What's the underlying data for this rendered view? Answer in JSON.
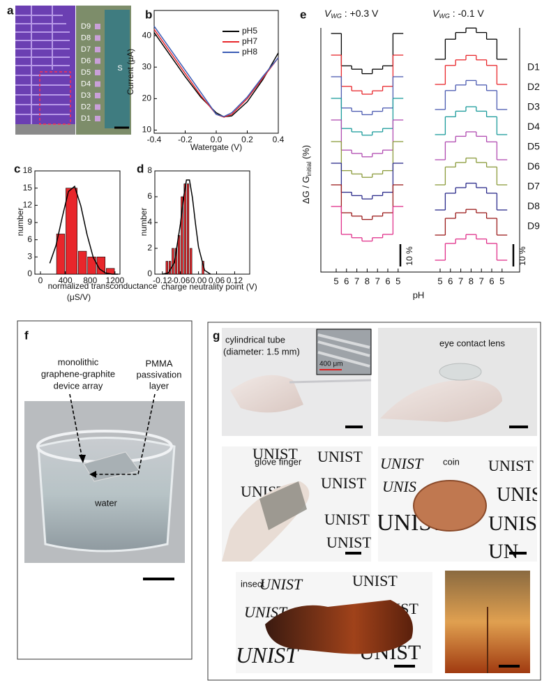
{
  "chart_data": [
    {
      "type": "line",
      "panel": "b",
      "xlabel": "Watergate (V)",
      "ylabel": "Current  (μA)",
      "x": [
        -0.4,
        -0.3,
        -0.2,
        -0.1,
        0,
        0.05,
        0.1,
        0.2,
        0.3,
        0.4
      ],
      "series": [
        {
          "name": "pH5",
          "color": "#000000",
          "values": [
            41,
            34,
            27,
            20.5,
            15.5,
            14.2,
            14.5,
            19,
            26,
            34.5
          ]
        },
        {
          "name": "pH7",
          "color": "#e8262b",
          "values": [
            42,
            35,
            28,
            21,
            15,
            14.1,
            15,
            20,
            26.5,
            33
          ]
        },
        {
          "name": "pH8",
          "color": "#3a5bb5",
          "values": [
            43,
            36,
            29,
            22,
            15,
            14.3,
            15.5,
            20.5,
            27,
            33
          ]
        }
      ],
      "xlim": [
        -0.4,
        0.4
      ],
      "xticks": [
        -0.4,
        -0.2,
        {
          "value": 0,
          "label": "0.0"
        },
        0.2,
        0.4
      ],
      "ylim": [
        9,
        48
      ],
      "yticks": [
        10,
        20,
        30,
        40
      ]
    },
    {
      "type": "histogram",
      "panel": "c",
      "xlabel": [
        "normalized transconductance",
        "(μS/V)"
      ],
      "ylabel": "number",
      "color": "#e8262b",
      "bins": [
        250,
        400,
        600,
        750,
        900,
        1050,
        1200
      ],
      "values": [
        7,
        15,
        4,
        3,
        3,
        1
      ],
      "fit": {
        "x": [
          150,
          250,
          350,
          450,
          550,
          650,
          750,
          850,
          950,
          1050,
          1150,
          1250
        ],
        "values": [
          1.9,
          5.0,
          9.9,
          14.4,
          15.3,
          11.9,
          6.9,
          2.9,
          0.9,
          0.2,
          0,
          0
        ]
      },
      "xlim": [
        -90,
        1280
      ],
      "xticks": [
        0,
        400,
        800,
        1200
      ],
      "ylim": [
        0,
        18
      ],
      "yticks": [
        0,
        3,
        6,
        9,
        12,
        15,
        18
      ]
    },
    {
      "type": "histogram",
      "panel": "d",
      "xlabel": [
        "charge neutrality point (V)"
      ],
      "ylabel": "number",
      "color": "#e8262b",
      "bins": [
        -0.11,
        -0.1,
        -0.09,
        -0.08,
        -0.07,
        -0.06,
        -0.05,
        -0.04,
        -0.03,
        -0.02,
        -0.01,
        0,
        0.01,
        0.02
      ],
      "values": [
        1,
        1,
        2,
        2,
        3,
        6,
        7,
        7,
        2,
        0,
        0,
        0,
        1
      ],
      "fit": {
        "x": [
          -0.12,
          -0.1,
          -0.08,
          -0.06,
          -0.05,
          -0.04,
          -0.03,
          -0.02,
          -0.01,
          0,
          0.02,
          0.04
        ],
        "values": [
          0,
          0.1,
          0.9,
          3.9,
          5.9,
          7.3,
          7.3,
          5.9,
          3.9,
          2.1,
          0.3,
          0
        ]
      },
      "xlim": [
        -0.145,
        0.17
      ],
      "xticks": [
        -0.12,
        -0.06,
        {
          "value": 0,
          "label": "0.00"
        },
        0.06,
        0.12
      ],
      "ylim": [
        0,
        8
      ],
      "yticks": [
        0,
        2,
        4,
        6,
        8
      ]
    },
    {
      "type": "step",
      "panel": "e",
      "title": {
        "symbol": "V",
        "subscript": "WG",
        "text": " : +0.3 V"
      },
      "ylabel": [
        "ΔG / G",
        "initial",
        "  (%)"
      ],
      "xlabel": "pH",
      "scale_bar": {
        "value": 10,
        "label": "10 %"
      },
      "categories": [
        "5",
        "6",
        "7",
        "8",
        "7",
        "6",
        "5"
      ],
      "series": [
        {
          "color": "#000000",
          "values": [
            0,
            -14.5,
            -16,
            -18,
            -16,
            -14.5,
            0
          ]
        },
        {
          "color": "#e8262b",
          "values": [
            0,
            -14,
            -16,
            -17.5,
            -16,
            -14,
            0
          ]
        },
        {
          "color": "#4a5ab0",
          "values": [
            0,
            -14,
            -15.5,
            -17,
            -15.5,
            -14,
            0
          ]
        },
        {
          "color": "#1a9a9a",
          "values": [
            0,
            -13.5,
            -15,
            -16.5,
            -15,
            -13.5,
            0
          ]
        },
        {
          "color": "#b04ab0",
          "values": [
            0,
            -13.5,
            -15,
            -16.5,
            -15,
            -13.5,
            0
          ]
        },
        {
          "color": "#8a9a3a",
          "values": [
            0,
            -13,
            -14.5,
            -16,
            -14.5,
            -13,
            0
          ]
        },
        {
          "color": "#2a2a8a",
          "values": [
            0,
            -13,
            -14.5,
            -16,
            -14.5,
            -13,
            0
          ]
        },
        {
          "color": "#9a1a1a",
          "values": [
            0,
            -12.5,
            -14,
            -15.5,
            -14,
            -12.5,
            0
          ]
        },
        {
          "color": "#e0308a",
          "values": [
            0,
            -12.5,
            -14,
            -15.5,
            -14,
            -12.5,
            0
          ]
        }
      ]
    },
    {
      "type": "step",
      "title": {
        "symbol": "V",
        "subscript": "WG",
        "text": " : -0.1 V"
      },
      "scale_bar": {
        "value": 10,
        "label": "10 %"
      },
      "categories": [
        "5",
        "6",
        "7",
        "8",
        "7",
        "6",
        "5"
      ],
      "series": [
        {
          "name": "D1",
          "color": "#000000",
          "values": [
            0,
            9,
            12,
            14,
            12,
            9,
            0
          ]
        },
        {
          "name": "D2",
          "color": "#e8262b",
          "values": [
            0,
            8.5,
            11,
            13,
            11,
            8.5,
            0
          ]
        },
        {
          "name": "D3",
          "color": "#4a5ab0",
          "values": [
            0,
            8.5,
            11,
            13,
            11,
            8.5,
            0
          ]
        },
        {
          "name": "D4",
          "color": "#1a9a9a",
          "values": [
            0,
            8,
            10.5,
            12.5,
            10.5,
            8,
            0
          ]
        },
        {
          "name": "D5",
          "color": "#b04ab0",
          "values": [
            0,
            8,
            10.5,
            12.5,
            10.5,
            8,
            0
          ]
        },
        {
          "name": "D6",
          "color": "#8a9a3a",
          "values": [
            0,
            8,
            10,
            12,
            10,
            8,
            0
          ]
        },
        {
          "name": "D7",
          "color": "#2a2a8a",
          "values": [
            0,
            7.5,
            10,
            12,
            10,
            7.5,
            0
          ]
        },
        {
          "name": "D8",
          "color": "#9a1a1a",
          "values": [
            0,
            7.5,
            10,
            11.5,
            10,
            7.5,
            0
          ]
        },
        {
          "name": "D9",
          "color": "#e0308a",
          "values": [
            0,
            7.5,
            9.5,
            11.5,
            9.5,
            7.5,
            0
          ]
        }
      ]
    }
  ],
  "panel_a": {
    "letter": "a",
    "device_labels": [
      "D9",
      "D8",
      "D7",
      "D6",
      "D5",
      "D4",
      "D3",
      "D2",
      "D1"
    ],
    "source_label": "S"
  },
  "panel_f": {
    "letter": "f",
    "annotations": [
      [
        "monolithic",
        "graphene-graphite",
        "device array"
      ],
      [
        "PMMA",
        "passivation",
        "layer"
      ]
    ],
    "water_label": "water"
  },
  "panel_g": {
    "letter": "g",
    "photos": [
      {
        "caption": [
          "cylindrical tube",
          "(diameter: 1.5 mm)"
        ],
        "inset_scale": "400 μm"
      },
      {
        "caption": [
          "eye contact lens"
        ]
      },
      {
        "caption": [
          "glove finger"
        ],
        "backdrop": [
          "UNIST",
          "UNIST",
          "UNIST",
          "UNIST",
          "UNIST",
          "UNIST"
        ]
      },
      {
        "caption": [
          "coin"
        ],
        "backdrop": [
          "UNIST",
          "UNIS",
          "UNIST",
          "UNIST",
          "UNIS",
          "UNIST",
          "UN"
        ]
      },
      {
        "caption": [
          "insect"
        ],
        "backdrop": [
          "UNIST",
          "UNIST",
          "UNIST",
          "UNIST",
          "UNIST",
          "UNIST"
        ]
      }
    ]
  }
}
